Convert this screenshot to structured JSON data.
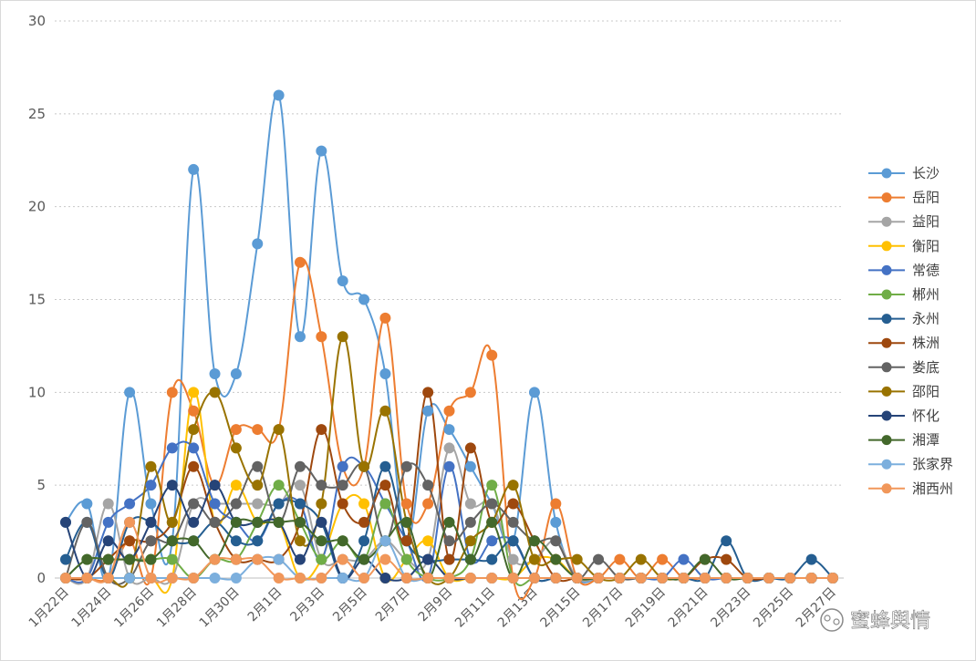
{
  "chart_data": {
    "type": "line",
    "title": "",
    "xlabel": "",
    "ylabel": "",
    "ylim": [
      0,
      30
    ],
    "yticks": [
      0,
      5,
      10,
      15,
      20,
      25,
      30
    ],
    "grid": true,
    "smooth": true,
    "legend_position": "right",
    "x": [
      "1月22日",
      "1月23日",
      "1月24日",
      "1月25日",
      "1月26日",
      "1月27日",
      "1月28日",
      "1月29日",
      "1月30日",
      "1月31日",
      "2月1日",
      "2月2日",
      "2月3日",
      "2月4日",
      "2月5日",
      "2月6日",
      "2月7日",
      "2月8日",
      "2月9日",
      "2月10日",
      "2月11日",
      "2月12日",
      "2月13日",
      "2月14日",
      "2月15日",
      "2月16日",
      "2月17日",
      "2月18日",
      "2月19日",
      "2月20日",
      "2月21日",
      "2月22日",
      "2月23日",
      "2月24日",
      "2月25日",
      "2月26日",
      "2月27日"
    ],
    "xtick_labels": [
      "1月22日",
      "1月24日",
      "1月26日",
      "1月28日",
      "1月30日",
      "2月1日",
      "2月3日",
      "2月5日",
      "2月7日",
      "2月9日",
      "2月11日",
      "2月13日",
      "2月15日",
      "2月17日",
      "2月19日",
      "2月21日",
      "2月23日",
      "2月25日",
      "2月27日"
    ],
    "series": [
      {
        "name": "长沙",
        "color": "#5b9bd5",
        "values": [
          3,
          4,
          0,
          10,
          4,
          2,
          22,
          11,
          11,
          18,
          26,
          13,
          23,
          16,
          15,
          11,
          2,
          9,
          8,
          6,
          4,
          2,
          10,
          3,
          0,
          0,
          0,
          0,
          0,
          0,
          0,
          0,
          0,
          0,
          0,
          0,
          0
        ]
      },
      {
        "name": "岳阳",
        "color": "#ed7d31",
        "values": [
          0,
          0,
          0,
          2,
          0,
          10,
          9,
          5,
          8,
          8,
          8,
          17,
          13,
          6,
          6,
          14,
          4,
          4,
          9,
          10,
          12,
          0,
          0,
          4,
          0,
          0,
          1,
          0,
          1,
          0,
          0,
          0,
          0,
          0,
          0,
          0,
          0
        ]
      },
      {
        "name": "益阳",
        "color": "#a5a5a5",
        "values": [
          0,
          0,
          4,
          0,
          0,
          0,
          4,
          4,
          4,
          4,
          4,
          5,
          1,
          1,
          1,
          2,
          1,
          1,
          7,
          4,
          4,
          1,
          1,
          2,
          0,
          0,
          0,
          0,
          0,
          0,
          0,
          0,
          0,
          0,
          0,
          0,
          0
        ]
      },
      {
        "name": "衡阳",
        "color": "#ffc000",
        "values": [
          0,
          0,
          0,
          0,
          0,
          0,
          10,
          3,
          5,
          3,
          3,
          0,
          1,
          4,
          4,
          0,
          1,
          2,
          0,
          0,
          0,
          0,
          1,
          1,
          0,
          0,
          0,
          0,
          0,
          0,
          0,
          0,
          0,
          0,
          0,
          0,
          0
        ]
      },
      {
        "name": "常德",
        "color": "#4472c4",
        "values": [
          0,
          0,
          3,
          4,
          5,
          7,
          7,
          4,
          3,
          2,
          4,
          4,
          1,
          6,
          6,
          4,
          2,
          0,
          6,
          1,
          2,
          2,
          0,
          0,
          0,
          0,
          0,
          0,
          0,
          1,
          0,
          0,
          0,
          0,
          0,
          0,
          0
        ]
      },
      {
        "name": "郴州",
        "color": "#70ad47",
        "values": [
          0,
          1,
          1,
          1,
          1,
          1,
          0,
          1,
          1,
          3,
          5,
          3,
          1,
          2,
          1,
          4,
          1,
          0,
          0,
          1,
          5,
          0,
          0,
          0,
          0,
          0,
          0,
          0,
          0,
          0,
          0,
          0,
          0,
          0,
          0,
          0,
          0
        ]
      },
      {
        "name": "永州",
        "color": "#255e91",
        "values": [
          1,
          3,
          0,
          3,
          3,
          2,
          2,
          3,
          2,
          2,
          4,
          4,
          3,
          0,
          2,
          6,
          2,
          1,
          1,
          1,
          1,
          2,
          0,
          0,
          0,
          0,
          0,
          0,
          0,
          0,
          0,
          2,
          0,
          0,
          0,
          1,
          0
        ]
      },
      {
        "name": "株洲",
        "color": "#9e480e",
        "values": [
          0,
          0,
          1,
          2,
          2,
          3,
          6,
          3,
          1,
          1,
          1,
          3,
          8,
          4,
          3,
          5,
          2,
          10,
          1,
          7,
          3,
          4,
          2,
          0,
          0,
          0,
          0,
          0,
          0,
          0,
          1,
          1,
          0,
          0,
          0,
          0,
          0
        ]
      },
      {
        "name": "娄底",
        "color": "#636363",
        "values": [
          0,
          3,
          0,
          0,
          2,
          2,
          4,
          3,
          4,
          6,
          3,
          6,
          5,
          5,
          6,
          2,
          6,
          5,
          2,
          3,
          4,
          3,
          2,
          2,
          0,
          1,
          0,
          0,
          0,
          0,
          0,
          0,
          0,
          0,
          0,
          0,
          0
        ]
      },
      {
        "name": "邵阳",
        "color": "#997300",
        "values": [
          0,
          0,
          0,
          0,
          6,
          3,
          8,
          10,
          7,
          5,
          8,
          2,
          4,
          13,
          6,
          9,
          3,
          0,
          0,
          2,
          3,
          5,
          1,
          1,
          1,
          0,
          0,
          1,
          0,
          0,
          0,
          0,
          0,
          0,
          0,
          0,
          0
        ]
      },
      {
        "name": "怀化",
        "color": "#264478",
        "values": [
          3,
          0,
          2,
          1,
          3,
          5,
          3,
          5,
          3,
          3,
          3,
          1,
          3,
          0,
          1,
          0,
          0,
          1,
          0,
          0,
          0,
          0,
          0,
          0,
          0,
          0,
          0,
          0,
          0,
          0,
          0,
          0,
          0,
          0,
          0,
          0,
          0
        ]
      },
      {
        "name": "湘潭",
        "color": "#43682b",
        "values": [
          0,
          1,
          1,
          1,
          1,
          2,
          2,
          1,
          3,
          3,
          3,
          3,
          2,
          2,
          1,
          2,
          3,
          0,
          3,
          1,
          3,
          0,
          2,
          1,
          0,
          0,
          0,
          0,
          0,
          0,
          1,
          0,
          0,
          0,
          0,
          0,
          0
        ]
      },
      {
        "name": "张家界",
        "color": "#7cafdd",
        "values": [
          0,
          0,
          0,
          0,
          0,
          0,
          0,
          0,
          0,
          1,
          1,
          0,
          0,
          0,
          0,
          2,
          0,
          0,
          0,
          0,
          0,
          0,
          0,
          0,
          0,
          0,
          0,
          0,
          0,
          0,
          0,
          0,
          0,
          0,
          0,
          0,
          0
        ]
      },
      {
        "name": "湘西州",
        "color": "#f1975a",
        "values": [
          0,
          0,
          0,
          3,
          0,
          0,
          0,
          1,
          1,
          1,
          0,
          0,
          0,
          1,
          0,
          1,
          0,
          0,
          0,
          0,
          0,
          0,
          0,
          0,
          0,
          0,
          0,
          0,
          0,
          0,
          0,
          0,
          0,
          0,
          0,
          0,
          0
        ]
      }
    ]
  },
  "watermark": "蜜蜂舆情"
}
